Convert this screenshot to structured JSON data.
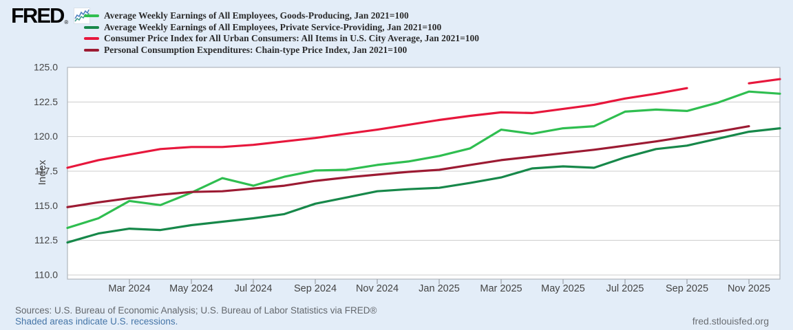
{
  "brand": {
    "logo_text": "FRED",
    "registered_mark": "®",
    "chart_icon": "fred-line-chart-icon",
    "icon_colors": {
      "line1": "#4d7ebf",
      "line2": "#3f9b8c"
    }
  },
  "footer": {
    "sources_text": "Sources: U.S. Bureau of Economic Analysis; U.S. Bureau of Labor Statistics via FRED®",
    "recessions_link": "Shaded areas indicate U.S. recessions.",
    "site_link": "fred.stlouisfed.org"
  },
  "colors": {
    "background": "#e3edf8",
    "plot_background": "#ffffff",
    "plot_border": "#b0b6bc",
    "gridline": "#cccccc",
    "tick": "#9aa0a6",
    "tick_label": "#444444",
    "link_blue": "#4575a7"
  },
  "chart_data": {
    "type": "line",
    "title": "",
    "xlabel": "",
    "ylabel": "Index",
    "ylim": [
      110,
      125
    ],
    "grid": "horizontal",
    "legend_position": "top-left",
    "ytick_labels": [
      "110.0",
      "112.5",
      "115.0",
      "117.5",
      "120.0",
      "122.5",
      "125.0"
    ],
    "ytick_values": [
      110,
      112.5,
      115,
      117.5,
      120,
      122.5,
      125
    ],
    "x": [
      "Jan 2024",
      "Feb 2024",
      "Mar 2024",
      "Apr 2024",
      "May 2024",
      "Jun 2024",
      "Jul 2024",
      "Aug 2024",
      "Sep 2024",
      "Oct 2024",
      "Nov 2024",
      "Dec 2024",
      "Jan 2025",
      "Feb 2025",
      "Mar 2025",
      "Apr 2025",
      "May 2025",
      "Jun 2025",
      "Jul 2025",
      "Aug 2025",
      "Sep 2025",
      "Oct 2025",
      "Nov 2025",
      "Dec 2025"
    ],
    "x_tick_labels": [
      "Mar 2024",
      "May 2024",
      "Jul 2024",
      "Sep 2024",
      "Nov 2024",
      "Jan 2025",
      "Mar 2025",
      "May 2025",
      "Jul 2025",
      "Sep 2025",
      "Nov 2025"
    ],
    "series": [
      {
        "name": "Average Weekly Earnings of All Employees, Goods-Producing, Jan 2021=100",
        "color": "#2FBE50",
        "values": [
          113.4,
          114.1,
          115.35,
          115.05,
          115.95,
          117.0,
          116.45,
          117.1,
          117.55,
          117.6,
          117.95,
          118.2,
          118.6,
          119.15,
          120.5,
          120.2,
          120.6,
          120.75,
          121.8,
          121.95,
          121.85,
          122.45,
          123.25,
          123.1
        ]
      },
      {
        "name": "Average Weekly Earnings of All Employees, Private Service-Providing, Jan 2021=100",
        "color": "#17884A",
        "values": [
          112.35,
          113.0,
          113.35,
          113.25,
          113.6,
          113.85,
          114.1,
          114.4,
          115.15,
          115.6,
          116.05,
          116.2,
          116.3,
          116.65,
          117.05,
          117.7,
          117.85,
          117.75,
          118.5,
          119.1,
          119.35,
          119.85,
          120.35,
          120.6
        ]
      },
      {
        "name": "Consumer Price Index for All Urban Consumers: All Items in U.S. City Average, Jan 2021=100",
        "color": "#E7173C",
        "values": [
          117.75,
          118.3,
          118.7,
          119.1,
          119.25,
          119.25,
          119.4,
          119.65,
          119.9,
          120.2,
          120.5,
          120.85,
          121.2,
          121.5,
          121.75,
          121.7,
          122.0,
          122.3,
          122.75,
          123.1,
          123.5,
          null,
          123.85,
          124.15
        ]
      },
      {
        "name": "Personal Consumption Expenditures: Chain-type Price Index, Jan 2021=100",
        "color": "#9C1B33",
        "values": [
          114.9,
          115.25,
          115.55,
          115.8,
          116.0,
          116.05,
          116.25,
          116.45,
          116.8,
          117.05,
          117.25,
          117.45,
          117.6,
          117.95,
          118.3,
          118.55,
          118.8,
          119.05,
          119.35,
          119.65,
          120.0,
          120.35,
          120.75,
          null
        ]
      }
    ]
  }
}
